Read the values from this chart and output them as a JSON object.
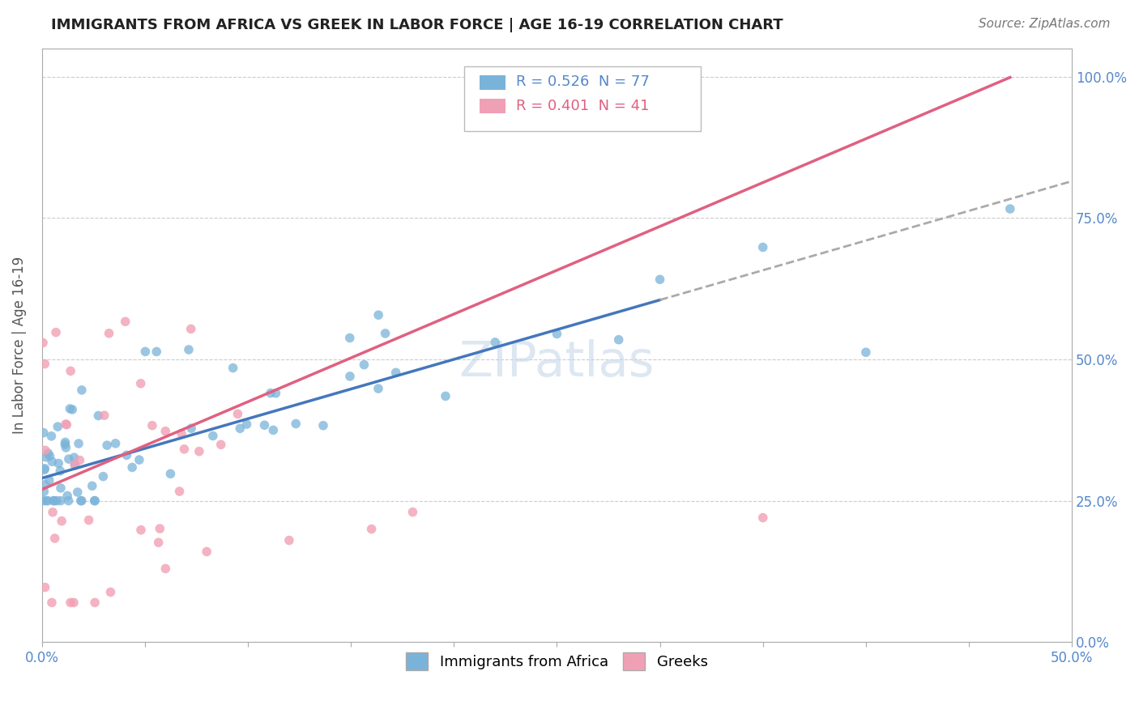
{
  "title": "IMMIGRANTS FROM AFRICA VS GREEK IN LABOR FORCE | AGE 16-19 CORRELATION CHART",
  "source": "Source: ZipAtlas.com",
  "ylabel": "In Labor Force | Age 16-19",
  "xlim": [
    0.0,
    0.5
  ],
  "ylim": [
    0.0,
    1.05
  ],
  "xticks": [
    0.0,
    0.05,
    0.1,
    0.15,
    0.2,
    0.25,
    0.3,
    0.35,
    0.4,
    0.45,
    0.5
  ],
  "xticklabels": [
    "0.0%",
    "",
    "",
    "",
    "",
    "",
    "",
    "",
    "",
    "",
    "50.0%"
  ],
  "ytick_positions": [
    0.0,
    0.25,
    0.5,
    0.75,
    1.0
  ],
  "ytick_labels_right": [
    "0.0%",
    "25.0%",
    "50.0%",
    "75.0%",
    "100.0%"
  ],
  "blue_color": "#7ab3d9",
  "pink_color": "#f0a0b5",
  "blue_line_color": "#4477bb",
  "pink_line_color": "#e06080",
  "dashed_line_color": "#aaaaaa",
  "legend_r_blue": "R = 0.526",
  "legend_n_blue": "N = 77",
  "legend_r_pink": "R = 0.401",
  "legend_n_pink": "N = 41",
  "axis_color": "#5588cc",
  "watermark": "ZIPatlas",
  "blue_intercept": 0.29,
  "blue_slope": 1.05,
  "pink_intercept": 0.27,
  "pink_slope": 1.55,
  "blue_scatter_seed": 15,
  "pink_scatter_seed": 7
}
